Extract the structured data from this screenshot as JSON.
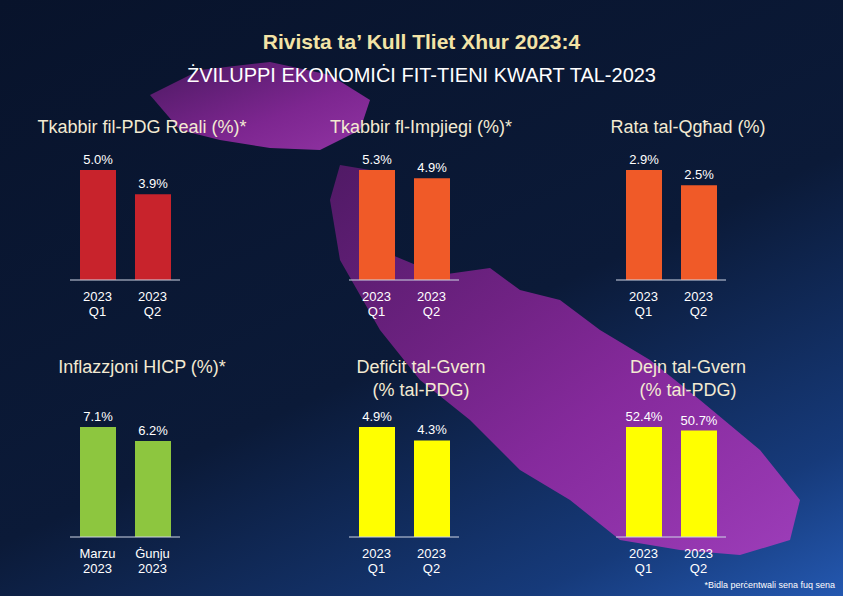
{
  "title": "Rivista ta’ Kull Tliet Xhur 2023:4",
  "subtitle": "ŻVILUPPI EKONOMIĊI FIT-TIENI KWART TAL-2023",
  "footnote": "*Bidla perċentwali sena fuq sena",
  "chart_data": [
    {
      "type": "bar",
      "title": "Tkabbir fil-PDG Reali (%)*",
      "categories": [
        "2023 Q1",
        "2023 Q2"
      ],
      "values": [
        5.0,
        3.9
      ],
      "value_labels": [
        "5.0%",
        "3.9%"
      ],
      "color": "#c8232c",
      "data_labels": true,
      "tick_labels": "x"
    },
    {
      "type": "bar",
      "title": "Tkabbir fl-Impjiegi (%)*",
      "categories": [
        "2023 Q1",
        "2023 Q2"
      ],
      "values": [
        5.3,
        4.9
      ],
      "value_labels": [
        "5.3%",
        "4.9%"
      ],
      "color": "#f05a28",
      "data_labels": true,
      "tick_labels": "x"
    },
    {
      "type": "bar",
      "title": "Rata tal-Qgħad (%)",
      "categories": [
        "2023 Q1",
        "2023 Q2"
      ],
      "values": [
        2.9,
        2.5
      ],
      "value_labels": [
        "2.9%",
        "2.5%"
      ],
      "color": "#f05a28",
      "data_labels": true,
      "tick_labels": "x"
    },
    {
      "type": "bar",
      "title": "Inflazzjoni HICP (%)*",
      "categories": [
        "Marzu 2023",
        "Ġunju 2023"
      ],
      "values": [
        7.1,
        6.2
      ],
      "value_labels": [
        "7.1%",
        "6.2%"
      ],
      "color": "#8dc63f",
      "data_labels": true,
      "tick_labels": "x"
    },
    {
      "type": "bar",
      "title": "Defiċit tal-Gvern (% tal-PDG)",
      "categories": [
        "2023 Q1",
        "2023 Q2"
      ],
      "values": [
        4.9,
        4.3
      ],
      "value_labels": [
        "4.9%",
        "4.3%"
      ],
      "color": "#ffff00",
      "data_labels": true,
      "tick_labels": "x"
    },
    {
      "type": "bar",
      "title": "Dejn tal-Gvern (% tal-PDG)",
      "categories": [
        "2023 Q1",
        "2023 Q2"
      ],
      "values": [
        52.4,
        50.7
      ],
      "value_labels": [
        "52.4%",
        "50.7%"
      ],
      "color": "#ffff00",
      "data_labels": true,
      "tick_labels": "x"
    }
  ]
}
